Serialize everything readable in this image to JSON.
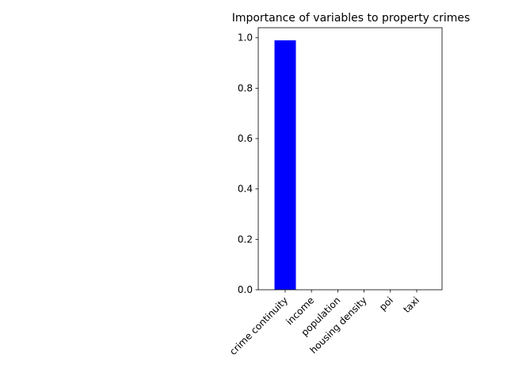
{
  "chart_data": {
    "type": "bar",
    "title": "Importance of variables to property crimes",
    "xlabel": "",
    "ylabel": "",
    "categories": [
      "crime continuity",
      "income",
      "population",
      "housing density",
      "poi",
      "taxi"
    ],
    "values": [
      0.99,
      0.0,
      0.0,
      0.0,
      0.0,
      0.0
    ],
    "ylim": [
      0,
      1.04
    ],
    "yticks": [
      0.0,
      0.2,
      0.4,
      0.6,
      0.8,
      1.0
    ],
    "ytick_labels": [
      "0.0",
      "0.2",
      "0.4",
      "0.6",
      "0.8",
      "1.0"
    ],
    "bar_color": "#0000ff",
    "grid": false,
    "legend": "none"
  }
}
